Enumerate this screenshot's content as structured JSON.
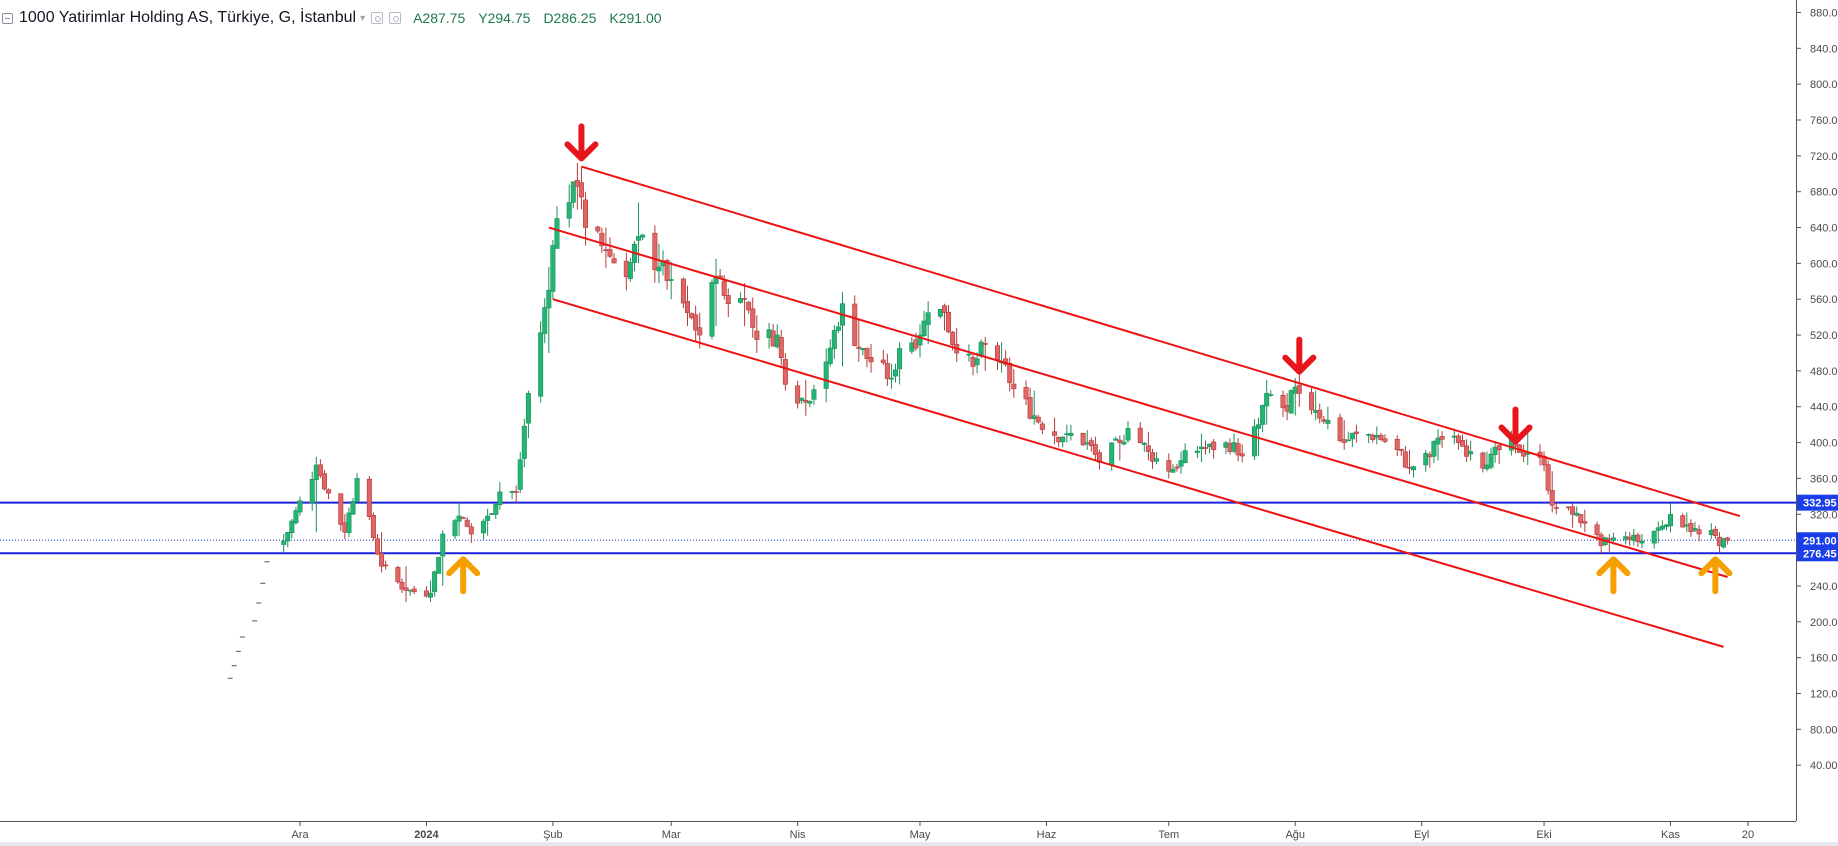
{
  "header": {
    "title": "1000 Yatirimlar Holding AS, Türkiye, G, İstanbul",
    "ohlc": {
      "open": "A287.75",
      "high": "Y294.75",
      "low": "D286.25",
      "close": "K291.00"
    },
    "icons": [
      "collapse-icon",
      "dropdown-caret-icon",
      "settings-icon",
      "hide-icon"
    ]
  },
  "colors": {
    "up": "#26a69a",
    "up_body": "#22b573",
    "down": "#ef5350",
    "down_body": "#e06666",
    "channel": "#ee1111",
    "level": "#1a22dd",
    "arrow_down": "#e8161b",
    "arrow_up": "#f5a000",
    "price_badge": "#1a3ee8",
    "axis_text": "#4a4a4a"
  },
  "chart_data": {
    "type": "candlestick",
    "title": "1000 Yatirimlar Holding AS, Türkiye, G, İstanbul",
    "y_axis": {
      "position": "right",
      "ylim": [
        0,
        885
      ],
      "ticks": [
        "880.00",
        "840.00",
        "800.00",
        "760.00",
        "720.00",
        "680.00",
        "640.00",
        "600.00",
        "560.00",
        "520.00",
        "480.00",
        "440.00",
        "400.00",
        "360.00",
        "320.00",
        "280.00",
        "240.00",
        "200.00",
        "160.00",
        "120.00",
        "80.00",
        "40.00"
      ]
    },
    "x_axis": {
      "ticks": [
        {
          "label": "Ara",
          "date": "2023-12-01",
          "bold": false
        },
        {
          "label": "2024",
          "date": "2024-01-01",
          "bold": true
        },
        {
          "label": "Şub",
          "date": "2024-02-01",
          "bold": false
        },
        {
          "label": "Mar",
          "date": "2024-03-01",
          "bold": false
        },
        {
          "label": "Nis",
          "date": "2024-04-01",
          "bold": false
        },
        {
          "label": "May",
          "date": "2024-05-01",
          "bold": false
        },
        {
          "label": "Haz",
          "date": "2024-06-01",
          "bold": false
        },
        {
          "label": "Tem",
          "date": "2024-07-01",
          "bold": false
        },
        {
          "label": "Ağu",
          "date": "2024-08-01",
          "bold": false
        },
        {
          "label": "Eyl",
          "date": "2024-09-01",
          "bold": false
        },
        {
          "label": "Eki",
          "date": "2024-10-01",
          "bold": false
        },
        {
          "label": "Kas",
          "date": "2024-11-01",
          "bold": false
        },
        {
          "label": "20",
          "date": "2024-11-20",
          "bold": false
        }
      ]
    },
    "last_price": {
      "value": 291.0,
      "label": "291.00"
    },
    "horizontal_levels": [
      {
        "value": 332.95,
        "label": "332.95"
      },
      {
        "value": 276.45,
        "label": "276.45"
      }
    ],
    "pre_listing_ticks": [
      {
        "date": "2023-11-14",
        "value": 137
      },
      {
        "date": "2023-11-15",
        "value": 151
      },
      {
        "date": "2023-11-16",
        "value": 167
      },
      {
        "date": "2023-11-17",
        "value": 183
      },
      {
        "date": "2023-11-20",
        "value": 201
      },
      {
        "date": "2023-11-21",
        "value": 221
      },
      {
        "date": "2023-11-22",
        "value": 243
      },
      {
        "date": "2023-11-23",
        "value": 267
      }
    ],
    "channel_lines": [
      {
        "start": {
          "date": "2024-02-08",
          "value": 708
        },
        "end": {
          "date": "2024-11-18",
          "value": 318
        }
      },
      {
        "start": {
          "date": "2024-01-31",
          "value": 640
        },
        "end": {
          "date": "2024-11-15",
          "value": 250
        }
      },
      {
        "start": {
          "date": "2024-02-01",
          "value": 560
        },
        "end": {
          "date": "2024-11-14",
          "value": 172
        }
      }
    ],
    "markers": [
      {
        "type": "down-arrow",
        "date": "2024-02-08",
        "value": 735
      },
      {
        "type": "down-arrow",
        "date": "2024-08-02",
        "value": 497
      },
      {
        "type": "down-arrow",
        "date": "2024-09-24",
        "value": 419
      },
      {
        "type": "up-arrow",
        "date": "2024-01-10",
        "value": 252
      },
      {
        "type": "up-arrow",
        "date": "2024-10-18",
        "value": 252
      },
      {
        "type": "up-arrow",
        "date": "2024-11-12",
        "value": 252
      }
    ],
    "anchors": [
      {
        "date": "2023-11-27",
        "close": 290,
        "high": 298,
        "low": 278
      },
      {
        "date": "2023-12-05",
        "close": 375,
        "high": 384,
        "low": 300
      },
      {
        "date": "2023-12-12",
        "close": 300,
        "high": 320,
        "low": 292
      },
      {
        "date": "2023-12-15",
        "close": 360,
        "high": 366,
        "low": 340
      },
      {
        "date": "2023-12-21",
        "close": 262,
        "high": 300,
        "low": 255
      },
      {
        "date": "2023-12-27",
        "close": 235,
        "high": 262,
        "low": 222
      },
      {
        "date": "2024-01-02",
        "close": 232,
        "high": 246,
        "low": 222
      },
      {
        "date": "2024-01-05",
        "close": 298,
        "high": 302,
        "low": 240
      },
      {
        "date": "2024-01-09",
        "close": 318,
        "high": 334,
        "low": 296
      },
      {
        "date": "2024-01-12",
        "close": 298,
        "high": 310,
        "low": 288
      },
      {
        "date": "2024-01-16",
        "close": 318,
        "high": 326,
        "low": 296
      },
      {
        "date": "2024-01-19",
        "close": 345,
        "high": 356,
        "low": 325
      },
      {
        "date": "2024-01-23",
        "close": 345,
        "high": 352,
        "low": 333
      },
      {
        "date": "2024-01-26",
        "close": 455,
        "high": 458,
        "low": 405
      },
      {
        "date": "2024-01-31",
        "close": 570,
        "high": 596,
        "low": 500
      },
      {
        "date": "2024-02-01",
        "close": 620,
        "high": 626,
        "low": 560
      },
      {
        "date": "2024-02-02",
        "close": 650,
        "high": 664,
        "low": 618
      },
      {
        "date": "2024-02-05",
        "close": 668,
        "high": 688,
        "low": 640
      },
      {
        "date": "2024-02-07",
        "close": 686,
        "high": 712,
        "low": 660
      },
      {
        "date": "2024-02-08",
        "close": 674,
        "high": 708,
        "low": 660
      },
      {
        "date": "2024-02-09",
        "close": 640,
        "high": 680,
        "low": 620
      },
      {
        "date": "2024-02-14",
        "close": 615,
        "high": 640,
        "low": 595
      },
      {
        "date": "2024-02-19",
        "close": 585,
        "high": 612,
        "low": 570
      },
      {
        "date": "2024-02-22",
        "close": 630,
        "high": 668,
        "low": 600
      },
      {
        "date": "2024-02-27",
        "close": 596,
        "high": 622,
        "low": 578
      },
      {
        "date": "2024-03-01",
        "close": 582,
        "high": 602,
        "low": 560
      },
      {
        "date": "2024-03-05",
        "close": 545,
        "high": 575,
        "low": 530
      },
      {
        "date": "2024-03-08",
        "close": 520,
        "high": 545,
        "low": 505
      },
      {
        "date": "2024-03-12",
        "close": 585,
        "high": 605,
        "low": 530
      },
      {
        "date": "2024-03-15",
        "close": 555,
        "high": 572,
        "low": 540
      },
      {
        "date": "2024-03-19",
        "close": 560,
        "high": 578,
        "low": 530
      },
      {
        "date": "2024-03-22",
        "close": 515,
        "high": 542,
        "low": 500
      },
      {
        "date": "2024-03-27",
        "close": 520,
        "high": 532,
        "low": 505
      },
      {
        "date": "2024-03-29",
        "close": 465,
        "high": 500,
        "low": 458
      },
      {
        "date": "2024-04-03",
        "close": 445,
        "high": 470,
        "low": 430
      },
      {
        "date": "2024-04-08",
        "close": 490,
        "high": 505,
        "low": 445
      },
      {
        "date": "2024-04-12",
        "close": 555,
        "high": 568,
        "low": 485
      },
      {
        "date": "2024-04-16",
        "close": 505,
        "high": 538,
        "low": 490
      },
      {
        "date": "2024-04-19",
        "close": 490,
        "high": 510,
        "low": 478
      },
      {
        "date": "2024-04-24",
        "close": 472,
        "high": 488,
        "low": 460
      },
      {
        "date": "2024-04-26",
        "close": 505,
        "high": 512,
        "low": 465
      },
      {
        "date": "2024-05-01",
        "close": 520,
        "high": 532,
        "low": 495
      },
      {
        "date": "2024-05-03",
        "close": 545,
        "high": 558,
        "low": 510
      },
      {
        "date": "2024-05-07",
        "close": 545,
        "high": 555,
        "low": 525
      },
      {
        "date": "2024-05-10",
        "close": 500,
        "high": 528,
        "low": 490
      },
      {
        "date": "2024-05-14",
        "close": 485,
        "high": 500,
        "low": 475
      },
      {
        "date": "2024-05-17",
        "close": 510,
        "high": 518,
        "low": 480
      },
      {
        "date": "2024-05-21",
        "close": 490,
        "high": 512,
        "low": 478
      },
      {
        "date": "2024-05-24",
        "close": 460,
        "high": 482,
        "low": 450
      },
      {
        "date": "2024-05-29",
        "close": 430,
        "high": 458,
        "low": 420
      },
      {
        "date": "2024-06-03",
        "close": 408,
        "high": 428,
        "low": 398
      },
      {
        "date": "2024-06-06",
        "close": 410,
        "high": 420,
        "low": 400
      },
      {
        "date": "2024-06-11",
        "close": 400,
        "high": 414,
        "low": 392
      },
      {
        "date": "2024-06-14",
        "close": 378,
        "high": 392,
        "low": 370
      },
      {
        "date": "2024-06-19",
        "close": 400,
        "high": 408,
        "low": 380
      },
      {
        "date": "2024-06-21",
        "close": 416,
        "high": 424,
        "low": 400
      },
      {
        "date": "2024-06-26",
        "close": 390,
        "high": 412,
        "low": 380
      },
      {
        "date": "2024-07-01",
        "close": 368,
        "high": 388,
        "low": 360
      },
      {
        "date": "2024-07-04",
        "close": 380,
        "high": 390,
        "low": 365
      },
      {
        "date": "2024-07-09",
        "close": 395,
        "high": 410,
        "low": 378
      },
      {
        "date": "2024-07-12",
        "close": 392,
        "high": 404,
        "low": 382
      },
      {
        "date": "2024-07-17",
        "close": 400,
        "high": 410,
        "low": 388
      },
      {
        "date": "2024-07-19",
        "close": 385,
        "high": 398,
        "low": 378
      },
      {
        "date": "2024-07-23",
        "close": 420,
        "high": 428,
        "low": 385
      },
      {
        "date": "2024-07-25",
        "close": 455,
        "high": 470,
        "low": 420
      },
      {
        "date": "2024-07-30",
        "close": 435,
        "high": 455,
        "low": 425
      },
      {
        "date": "2024-08-01",
        "close": 462,
        "high": 472,
        "low": 430
      },
      {
        "date": "2024-08-02",
        "close": 455,
        "high": 482,
        "low": 440
      },
      {
        "date": "2024-08-06",
        "close": 436,
        "high": 458,
        "low": 425
      },
      {
        "date": "2024-08-09",
        "close": 425,
        "high": 440,
        "low": 415
      },
      {
        "date": "2024-08-13",
        "close": 400,
        "high": 425,
        "low": 392
      },
      {
        "date": "2024-08-16",
        "close": 410,
        "high": 420,
        "low": 400
      },
      {
        "date": "2024-08-21",
        "close": 408,
        "high": 418,
        "low": 398
      },
      {
        "date": "2024-08-26",
        "close": 392,
        "high": 408,
        "low": 385
      },
      {
        "date": "2024-08-29",
        "close": 372,
        "high": 392,
        "low": 365
      },
      {
        "date": "2024-09-03",
        "close": 384,
        "high": 390,
        "low": 372
      },
      {
        "date": "2024-09-05",
        "close": 405,
        "high": 415,
        "low": 380
      },
      {
        "date": "2024-09-10",
        "close": 400,
        "high": 410,
        "low": 392
      },
      {
        "date": "2024-09-13",
        "close": 390,
        "high": 402,
        "low": 380
      },
      {
        "date": "2024-09-17",
        "close": 375,
        "high": 390,
        "low": 368
      },
      {
        "date": "2024-09-20",
        "close": 392,
        "high": 400,
        "low": 376
      },
      {
        "date": "2024-09-24",
        "close": 396,
        "high": 412,
        "low": 388
      },
      {
        "date": "2024-09-27",
        "close": 388,
        "high": 412,
        "low": 375
      },
      {
        "date": "2024-10-01",
        "close": 375,
        "high": 390,
        "low": 368
      },
      {
        "date": "2024-10-03",
        "close": 330,
        "high": 368,
        "low": 322
      },
      {
        "date": "2024-10-08",
        "close": 320,
        "high": 332,
        "low": 305
      },
      {
        "date": "2024-10-11",
        "close": 310,
        "high": 325,
        "low": 300
      },
      {
        "date": "2024-10-15",
        "close": 285,
        "high": 300,
        "low": 276
      },
      {
        "date": "2024-10-17",
        "close": 292,
        "high": 298,
        "low": 278
      },
      {
        "date": "2024-10-22",
        "close": 292,
        "high": 300,
        "low": 285
      },
      {
        "date": "2024-10-25",
        "close": 290,
        "high": 298,
        "low": 282
      },
      {
        "date": "2024-10-29",
        "close": 305,
        "high": 312,
        "low": 288
      },
      {
        "date": "2024-11-01",
        "close": 320,
        "high": 332,
        "low": 300
      },
      {
        "date": "2024-11-05",
        "close": 308,
        "high": 322,
        "low": 300
      },
      {
        "date": "2024-11-08",
        "close": 298,
        "high": 308,
        "low": 290
      },
      {
        "date": "2024-11-11",
        "close": 302,
        "high": 310,
        "low": 292
      },
      {
        "date": "2024-11-13",
        "close": 285,
        "high": 300,
        "low": 278
      },
      {
        "date": "2024-11-15",
        "close": 291,
        "high": 294.75,
        "low": 286.25
      }
    ]
  }
}
